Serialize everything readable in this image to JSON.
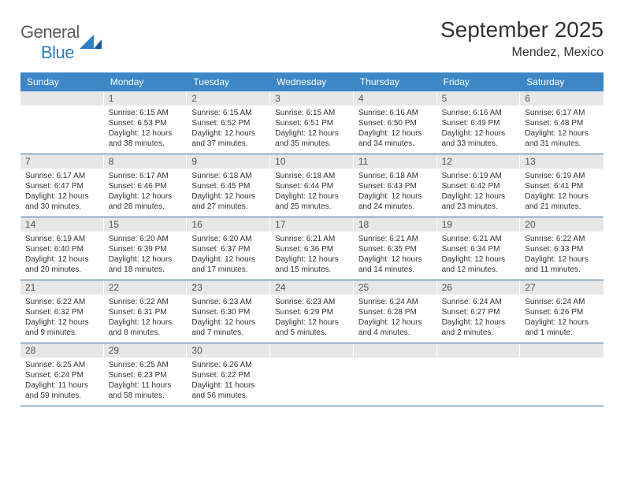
{
  "logo": {
    "text1": "General",
    "text2": "Blue"
  },
  "title": "September 2025",
  "location": "Mendez, Mexico",
  "header_bg": "#3d87c7",
  "daynum_bg": "#e7e7e7",
  "border_color": "#2d6ca3",
  "text_color": "#333333",
  "fontsize_title": 28,
  "fontsize_location": 16,
  "fontsize_dayhdr": 12,
  "fontsize_daynum": 12,
  "fontsize_body": 10,
  "day_names": [
    "Sunday",
    "Monday",
    "Tuesday",
    "Wednesday",
    "Thursday",
    "Friday",
    "Saturday"
  ],
  "weeks": [
    [
      null,
      {
        "n": "1",
        "sr": "6:15 AM",
        "ss": "6:53 PM",
        "dl": "12 hours and 38 minutes."
      },
      {
        "n": "2",
        "sr": "6:15 AM",
        "ss": "6:52 PM",
        "dl": "12 hours and 37 minutes."
      },
      {
        "n": "3",
        "sr": "6:15 AM",
        "ss": "6:51 PM",
        "dl": "12 hours and 35 minutes."
      },
      {
        "n": "4",
        "sr": "6:16 AM",
        "ss": "6:50 PM",
        "dl": "12 hours and 34 minutes."
      },
      {
        "n": "5",
        "sr": "6:16 AM",
        "ss": "6:49 PM",
        "dl": "12 hours and 33 minutes."
      },
      {
        "n": "6",
        "sr": "6:17 AM",
        "ss": "6:48 PM",
        "dl": "12 hours and 31 minutes."
      }
    ],
    [
      {
        "n": "7",
        "sr": "6:17 AM",
        "ss": "6:47 PM",
        "dl": "12 hours and 30 minutes."
      },
      {
        "n": "8",
        "sr": "6:17 AM",
        "ss": "6:46 PM",
        "dl": "12 hours and 28 minutes."
      },
      {
        "n": "9",
        "sr": "6:18 AM",
        "ss": "6:45 PM",
        "dl": "12 hours and 27 minutes."
      },
      {
        "n": "10",
        "sr": "6:18 AM",
        "ss": "6:44 PM",
        "dl": "12 hours and 25 minutes."
      },
      {
        "n": "11",
        "sr": "6:18 AM",
        "ss": "6:43 PM",
        "dl": "12 hours and 24 minutes."
      },
      {
        "n": "12",
        "sr": "6:19 AM",
        "ss": "6:42 PM",
        "dl": "12 hours and 23 minutes."
      },
      {
        "n": "13",
        "sr": "6:19 AM",
        "ss": "6:41 PM",
        "dl": "12 hours and 21 minutes."
      }
    ],
    [
      {
        "n": "14",
        "sr": "6:19 AM",
        "ss": "6:40 PM",
        "dl": "12 hours and 20 minutes."
      },
      {
        "n": "15",
        "sr": "6:20 AM",
        "ss": "6:39 PM",
        "dl": "12 hours and 18 minutes."
      },
      {
        "n": "16",
        "sr": "6:20 AM",
        "ss": "6:37 PM",
        "dl": "12 hours and 17 minutes."
      },
      {
        "n": "17",
        "sr": "6:21 AM",
        "ss": "6:36 PM",
        "dl": "12 hours and 15 minutes."
      },
      {
        "n": "18",
        "sr": "6:21 AM",
        "ss": "6:35 PM",
        "dl": "12 hours and 14 minutes."
      },
      {
        "n": "19",
        "sr": "6:21 AM",
        "ss": "6:34 PM",
        "dl": "12 hours and 12 minutes."
      },
      {
        "n": "20",
        "sr": "6:22 AM",
        "ss": "6:33 PM",
        "dl": "12 hours and 11 minutes."
      }
    ],
    [
      {
        "n": "21",
        "sr": "6:22 AM",
        "ss": "6:32 PM",
        "dl": "12 hours and 9 minutes."
      },
      {
        "n": "22",
        "sr": "6:22 AM",
        "ss": "6:31 PM",
        "dl": "12 hours and 8 minutes."
      },
      {
        "n": "23",
        "sr": "6:23 AM",
        "ss": "6:30 PM",
        "dl": "12 hours and 7 minutes."
      },
      {
        "n": "24",
        "sr": "6:23 AM",
        "ss": "6:29 PM",
        "dl": "12 hours and 5 minutes."
      },
      {
        "n": "25",
        "sr": "6:24 AM",
        "ss": "6:28 PM",
        "dl": "12 hours and 4 minutes."
      },
      {
        "n": "26",
        "sr": "6:24 AM",
        "ss": "6:27 PM",
        "dl": "12 hours and 2 minutes."
      },
      {
        "n": "27",
        "sr": "6:24 AM",
        "ss": "6:26 PM",
        "dl": "12 hours and 1 minute."
      }
    ],
    [
      {
        "n": "28",
        "sr": "6:25 AM",
        "ss": "6:24 PM",
        "dl": "11 hours and 59 minutes."
      },
      {
        "n": "29",
        "sr": "6:25 AM",
        "ss": "6:23 PM",
        "dl": "11 hours and 58 minutes."
      },
      {
        "n": "30",
        "sr": "6:26 AM",
        "ss": "6:22 PM",
        "dl": "11 hours and 56 minutes."
      },
      null,
      null,
      null,
      null
    ]
  ]
}
